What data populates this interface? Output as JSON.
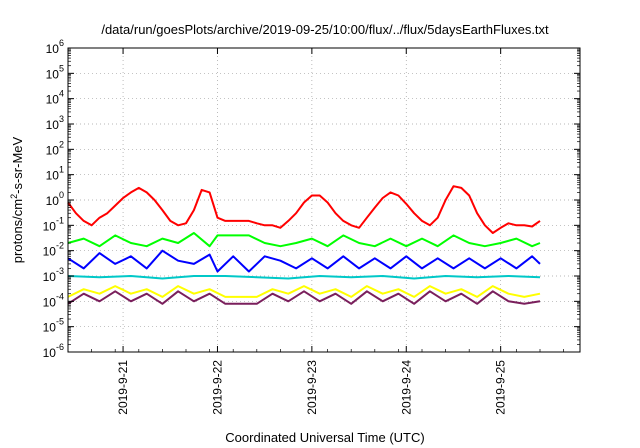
{
  "chart_data": {
    "type": "line",
    "title": "/data/run/goesPlots/archive/2019-09-25/10:00/flux/../flux/5daysEarthFluxes.txt",
    "xlabel": "Coordinated Universal Time (UTC)",
    "ylabel_main": "protons/cm",
    "ylabel_sup": "2",
    "ylabel_rest": "-s-sr-MeV",
    "y_scale": "log",
    "ylim": [
      1e-06,
      1000000.0
    ],
    "y_ticks": [
      {
        "base": "10",
        "exp": "-6",
        "value": 1e-06
      },
      {
        "base": "10",
        "exp": "-5",
        "value": 1e-05
      },
      {
        "base": "10",
        "exp": "-4",
        "value": 0.0001
      },
      {
        "base": "10",
        "exp": "-3",
        "value": 0.001
      },
      {
        "base": "10",
        "exp": "-2",
        "value": 0.01
      },
      {
        "base": "10",
        "exp": "-1",
        "value": 0.1
      },
      {
        "base": "10",
        "exp": "0",
        "value": 1.0
      },
      {
        "base": "10",
        "exp": "1",
        "value": 10.0
      },
      {
        "base": "10",
        "exp": "2",
        "value": 100.0
      },
      {
        "base": "10",
        "exp": "3",
        "value": 1000.0
      },
      {
        "base": "10",
        "exp": "4",
        "value": 10000.0
      },
      {
        "base": "10",
        "exp": "5",
        "value": 100000.0
      },
      {
        "base": "10",
        "exp": "6",
        "value": 1000000.0
      }
    ],
    "xlim": [
      "2019-09-20T10:00",
      "2019-09-25T10:00"
    ],
    "x_ticks": [
      "2019-9-21",
      "2019-9-22",
      "2019-9-23",
      "2019-9-24",
      "2019-9-25"
    ],
    "grid": true,
    "legend": "none",
    "series": [
      {
        "color": "#ff0000",
        "x": [
          "2019-09-20T10:00",
          "2019-09-20T12:00",
          "2019-09-20T14:00",
          "2019-09-20T16:00",
          "2019-09-20T18:00",
          "2019-09-20T20:00",
          "2019-09-20T22:00",
          "2019-09-21T00:00",
          "2019-09-21T02:00",
          "2019-09-21T04:00",
          "2019-09-21T06:00",
          "2019-09-21T08:00",
          "2019-09-21T10:00",
          "2019-09-21T12:00",
          "2019-09-21T14:00",
          "2019-09-21T16:00",
          "2019-09-21T18:00",
          "2019-09-21T20:00",
          "2019-09-21T22:00",
          "2019-09-22T00:00",
          "2019-09-22T02:00",
          "2019-09-22T04:00",
          "2019-09-22T06:00",
          "2019-09-22T08:00",
          "2019-09-22T10:00",
          "2019-09-22T12:00",
          "2019-09-22T14:00",
          "2019-09-22T16:00",
          "2019-09-22T18:00",
          "2019-09-22T20:00",
          "2019-09-22T22:00",
          "2019-09-23T00:00",
          "2019-09-23T02:00",
          "2019-09-23T04:00",
          "2019-09-23T06:00",
          "2019-09-23T08:00",
          "2019-09-23T10:00",
          "2019-09-23T12:00",
          "2019-09-23T14:00",
          "2019-09-23T16:00",
          "2019-09-23T18:00",
          "2019-09-23T20:00",
          "2019-09-23T22:00",
          "2019-09-24T00:00",
          "2019-09-24T02:00",
          "2019-09-24T04:00",
          "2019-09-24T06:00",
          "2019-09-24T08:00",
          "2019-09-24T10:00",
          "2019-09-24T12:00",
          "2019-09-24T14:00",
          "2019-09-24T16:00",
          "2019-09-24T18:00",
          "2019-09-24T20:00",
          "2019-09-24T22:00",
          "2019-09-25T00:00",
          "2019-09-25T02:00",
          "2019-09-25T04:00",
          "2019-09-25T06:00",
          "2019-09-25T08:00",
          "2019-09-25T10:00"
        ],
        "y": [
          0.8,
          0.3,
          0.15,
          0.1,
          0.2,
          0.3,
          0.6,
          1.2,
          2.0,
          3.0,
          2.0,
          1.0,
          0.4,
          0.15,
          0.1,
          0.12,
          0.4,
          2.5,
          2.0,
          0.2,
          0.15,
          0.15,
          0.15,
          0.15,
          0.12,
          0.1,
          0.1,
          0.08,
          0.15,
          0.3,
          0.8,
          1.5,
          1.5,
          0.8,
          0.3,
          0.15,
          0.1,
          0.08,
          0.2,
          0.5,
          1.2,
          2.0,
          1.5,
          0.7,
          0.3,
          0.15,
          0.1,
          0.2,
          1.0,
          3.5,
          3.0,
          1.5,
          0.3,
          0.1,
          0.05,
          0.08,
          0.12,
          0.1,
          0.1,
          0.09,
          0.15
        ]
      },
      {
        "color": "#00ff00",
        "x": [
          "2019-09-20T10:00",
          "2019-09-20T14:00",
          "2019-09-20T18:00",
          "2019-09-20T22:00",
          "2019-09-21T02:00",
          "2019-09-21T06:00",
          "2019-09-21T10:00",
          "2019-09-21T14:00",
          "2019-09-21T18:00",
          "2019-09-21T22:00",
          "2019-09-22T00:00",
          "2019-09-22T04:00",
          "2019-09-22T08:00",
          "2019-09-22T12:00",
          "2019-09-22T16:00",
          "2019-09-22T20:00",
          "2019-09-23T00:00",
          "2019-09-23T04:00",
          "2019-09-23T08:00",
          "2019-09-23T12:00",
          "2019-09-23T16:00",
          "2019-09-23T20:00",
          "2019-09-24T00:00",
          "2019-09-24T04:00",
          "2019-09-24T08:00",
          "2019-09-24T12:00",
          "2019-09-24T16:00",
          "2019-09-24T20:00",
          "2019-09-25T00:00",
          "2019-09-25T04:00",
          "2019-09-25T08:00",
          "2019-09-25T10:00"
        ],
        "y": [
          0.02,
          0.03,
          0.015,
          0.04,
          0.02,
          0.015,
          0.03,
          0.02,
          0.05,
          0.015,
          0.04,
          0.04,
          0.04,
          0.02,
          0.015,
          0.02,
          0.03,
          0.015,
          0.04,
          0.02,
          0.015,
          0.03,
          0.015,
          0.03,
          0.015,
          0.04,
          0.02,
          0.015,
          0.02,
          0.03,
          0.015,
          0.02
        ]
      },
      {
        "color": "#0000ff",
        "x": [
          "2019-09-20T10:00",
          "2019-09-20T14:00",
          "2019-09-20T18:00",
          "2019-09-20T22:00",
          "2019-09-21T02:00",
          "2019-09-21T06:00",
          "2019-09-21T10:00",
          "2019-09-21T14:00",
          "2019-09-21T18:00",
          "2019-09-21T22:00",
          "2019-09-22T00:00",
          "2019-09-22T04:00",
          "2019-09-22T08:00",
          "2019-09-22T12:00",
          "2019-09-22T16:00",
          "2019-09-22T20:00",
          "2019-09-23T00:00",
          "2019-09-23T04:00",
          "2019-09-23T08:00",
          "2019-09-23T12:00",
          "2019-09-23T16:00",
          "2019-09-23T20:00",
          "2019-09-24T00:00",
          "2019-09-24T04:00",
          "2019-09-24T08:00",
          "2019-09-24T12:00",
          "2019-09-24T16:00",
          "2019-09-24T20:00",
          "2019-09-25T00:00",
          "2019-09-25T04:00",
          "2019-09-25T08:00",
          "2019-09-25T10:00"
        ],
        "y": [
          0.005,
          0.002,
          0.008,
          0.003,
          0.006,
          0.002,
          0.01,
          0.004,
          0.003,
          0.007,
          0.0015,
          0.006,
          0.0015,
          0.006,
          0.004,
          0.002,
          0.005,
          0.002,
          0.006,
          0.002,
          0.005,
          0.002,
          0.006,
          0.002,
          0.005,
          0.002,
          0.005,
          0.002,
          0.005,
          0.002,
          0.006,
          0.003
        ]
      },
      {
        "color": "#00c8c8",
        "x": [
          "2019-09-20T10:00",
          "2019-09-20T18:00",
          "2019-09-21T02:00",
          "2019-09-21T10:00",
          "2019-09-21T18:00",
          "2019-09-22T02:00",
          "2019-09-22T10:00",
          "2019-09-22T18:00",
          "2019-09-23T02:00",
          "2019-09-23T10:00",
          "2019-09-23T18:00",
          "2019-09-24T02:00",
          "2019-09-24T10:00",
          "2019-09-24T18:00",
          "2019-09-25T02:00",
          "2019-09-25T10:00"
        ],
        "y": [
          0.001,
          0.0009,
          0.001,
          0.0008,
          0.001,
          0.001,
          0.0009,
          0.0008,
          0.001,
          0.0009,
          0.001,
          0.0008,
          0.001,
          0.0009,
          0.001,
          0.0009
        ]
      },
      {
        "color": "#ffff00",
        "x": [
          "2019-09-20T10:00",
          "2019-09-20T14:00",
          "2019-09-20T18:00",
          "2019-09-20T22:00",
          "2019-09-21T02:00",
          "2019-09-21T06:00",
          "2019-09-21T10:00",
          "2019-09-21T14:00",
          "2019-09-21T18:00",
          "2019-09-21T22:00",
          "2019-09-22T02:00",
          "2019-09-22T06:00",
          "2019-09-22T10:00",
          "2019-09-22T14:00",
          "2019-09-22T18:00",
          "2019-09-22T22:00",
          "2019-09-23T02:00",
          "2019-09-23T06:00",
          "2019-09-23T10:00",
          "2019-09-23T14:00",
          "2019-09-23T18:00",
          "2019-09-23T22:00",
          "2019-09-24T02:00",
          "2019-09-24T06:00",
          "2019-09-24T10:00",
          "2019-09-24T14:00",
          "2019-09-24T18:00",
          "2019-09-24T22:00",
          "2019-09-25T02:00",
          "2019-09-25T06:00",
          "2019-09-25T10:00"
        ],
        "y": [
          0.00015,
          0.0003,
          0.0002,
          0.0004,
          0.0002,
          0.0003,
          0.00015,
          0.0004,
          0.0002,
          0.0003,
          0.00015,
          0.00015,
          0.00015,
          0.0003,
          0.0002,
          0.0004,
          0.0002,
          0.0003,
          0.00015,
          0.0004,
          0.0002,
          0.0003,
          0.00015,
          0.0004,
          0.0002,
          0.0003,
          0.00015,
          0.0004,
          0.0002,
          0.00015,
          0.0002
        ]
      },
      {
        "color": "#7a1f5c",
        "x": [
          "2019-09-20T10:00",
          "2019-09-20T14:00",
          "2019-09-20T18:00",
          "2019-09-20T22:00",
          "2019-09-21T02:00",
          "2019-09-21T06:00",
          "2019-09-21T10:00",
          "2019-09-21T14:00",
          "2019-09-21T18:00",
          "2019-09-21T22:00",
          "2019-09-22T02:00",
          "2019-09-22T06:00",
          "2019-09-22T10:00",
          "2019-09-22T14:00",
          "2019-09-22T18:00",
          "2019-09-22T22:00",
          "2019-09-23T02:00",
          "2019-09-23T06:00",
          "2019-09-23T10:00",
          "2019-09-23T14:00",
          "2019-09-23T18:00",
          "2019-09-23T22:00",
          "2019-09-24T02:00",
          "2019-09-24T06:00",
          "2019-09-24T10:00",
          "2019-09-24T14:00",
          "2019-09-24T18:00",
          "2019-09-24T22:00",
          "2019-09-25T02:00",
          "2019-09-25T06:00",
          "2019-09-25T10:00"
        ],
        "y": [
          8e-05,
          0.0002,
          0.0001,
          0.00025,
          0.0001,
          0.0002,
          8e-05,
          0.00025,
          0.0001,
          0.0002,
          8e-05,
          8e-05,
          8e-05,
          0.0002,
          0.0001,
          0.00025,
          0.0001,
          0.0002,
          8e-05,
          0.00025,
          0.0001,
          0.0002,
          8e-05,
          0.00025,
          0.0001,
          0.0002,
          8e-05,
          0.00025,
          0.0001,
          8e-05,
          0.0001
        ]
      }
    ]
  }
}
